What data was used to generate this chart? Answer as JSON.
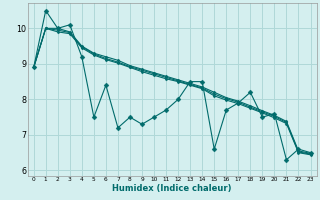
{
  "xlabel": "Humidex (Indice chaleur)",
  "bg_color": "#d4efef",
  "grid_color": "#afd8d8",
  "line_color": "#006b6b",
  "xlim": [
    -0.5,
    23.5
  ],
  "ylim": [
    5.85,
    10.7
  ],
  "yticks": [
    6,
    7,
    8,
    9,
    10
  ],
  "xticks": [
    0,
    1,
    2,
    3,
    4,
    5,
    6,
    7,
    8,
    9,
    10,
    11,
    12,
    13,
    14,
    15,
    16,
    17,
    18,
    19,
    20,
    21,
    22,
    23
  ],
  "xlabel_fontsize": 6.0,
  "tick_fontsize_x": 4.2,
  "tick_fontsize_y": 5.8,
  "series": [
    [
      8.9,
      10.5,
      10.0,
      10.1,
      9.2,
      7.5,
      8.4,
      7.2,
      7.5,
      7.3,
      7.5,
      7.7,
      8.0,
      8.5,
      8.5,
      6.6,
      7.7,
      7.9,
      8.2,
      7.5,
      7.6,
      6.3,
      6.6,
      6.5
    ],
    [
      8.9,
      10.0,
      10.0,
      9.9,
      9.5,
      9.3,
      9.2,
      9.1,
      8.95,
      8.85,
      8.75,
      8.65,
      8.55,
      8.45,
      8.35,
      8.2,
      8.05,
      7.95,
      7.82,
      7.68,
      7.55,
      7.38,
      6.55,
      6.48
    ],
    [
      8.9,
      10.0,
      9.95,
      9.88,
      9.48,
      9.28,
      9.15,
      9.05,
      8.92,
      8.82,
      8.72,
      8.62,
      8.52,
      8.42,
      8.32,
      8.15,
      8.02,
      7.92,
      7.78,
      7.65,
      7.52,
      7.35,
      6.52,
      6.46
    ],
    [
      8.9,
      10.0,
      9.9,
      9.85,
      9.45,
      9.25,
      9.12,
      9.02,
      8.9,
      8.78,
      8.68,
      8.58,
      8.5,
      8.4,
      8.3,
      8.1,
      7.98,
      7.88,
      7.75,
      7.62,
      7.48,
      7.32,
      6.5,
      6.44
    ]
  ],
  "marker_sizes": [
    2.5,
    1.5,
    1.5,
    1.5
  ]
}
